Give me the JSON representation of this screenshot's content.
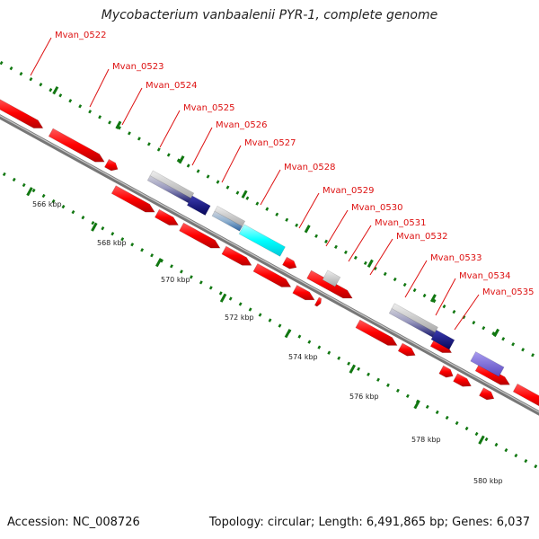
{
  "title": "Mycobacterium vanbaalenii PYR-1, complete genome",
  "footer": {
    "accession": "Accession: NC_008726",
    "summary": "Topology: circular; Length: 6,491,865 bp; Genes: 6,037"
  },
  "colors": {
    "cds_forward": "#ff0000",
    "cds_reverse": "#ff0000",
    "backbone": "#8c8c8c",
    "tick": "#117711",
    "label": "#dd1111",
    "hit_navy": "#0c0c80",
    "hit_purple": "#7766dd",
    "hit_steel": "#4682b4",
    "hit_cyan": "#00ffff",
    "hit_gray": "#c0c0c0"
  },
  "kbp_labels": [
    "566 kbp",
    "568 kbp",
    "570 kbp",
    "572 kbp",
    "574 kbp",
    "576 kbp",
    "578 kbp",
    "580 kbp"
  ],
  "genes": [
    {
      "label": "Mvan_0522"
    },
    {
      "label": "Mvan_0523"
    },
    {
      "label": "Mvan_0524"
    },
    {
      "label": "Mvan_0525"
    },
    {
      "label": "Mvan_0526"
    },
    {
      "label": "Mvan_0527"
    },
    {
      "label": "Mvan_0528"
    },
    {
      "label": "Mvan_0529"
    },
    {
      "label": "Mvan_0530"
    },
    {
      "label": "Mvan_0531"
    },
    {
      "label": "Mvan_0532"
    },
    {
      "label": "Mvan_0533"
    },
    {
      "label": "Mvan_0534"
    },
    {
      "label": "Mvan_0535"
    }
  ]
}
